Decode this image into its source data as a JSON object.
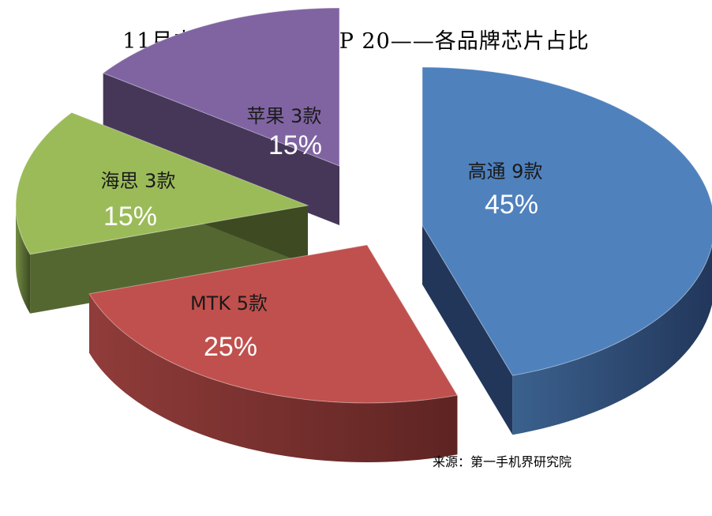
{
  "chart_data": {
    "type": "pie",
    "title": "11月中国畅销手机TOP 20——各品牌芯片占比",
    "source": "来源：第一手机界研究院",
    "slices": [
      {
        "name": "高通",
        "label": "高通 9款",
        "count": 9,
        "value": 45,
        "percent_label": "45%",
        "color": "#4F81BD",
        "side_color": "#22365A"
      },
      {
        "name": "MTK",
        "label": "MTK  5款",
        "count": 5,
        "value": 25,
        "percent_label": "25%",
        "color": "#C0504D",
        "side_color": "#5E2422"
      },
      {
        "name": "海思",
        "label": "海思 3款",
        "count": 3,
        "value": 15,
        "percent_label": "15%",
        "color": "#9BBB59",
        "side_color": "#3D4A22"
      },
      {
        "name": "苹果",
        "label": "苹果 3款",
        "count": 3,
        "value": 15,
        "percent_label": "15%",
        "color": "#8064A2",
        "side_color": "#30223F"
      }
    ],
    "style": "3d-exploded-pie"
  }
}
